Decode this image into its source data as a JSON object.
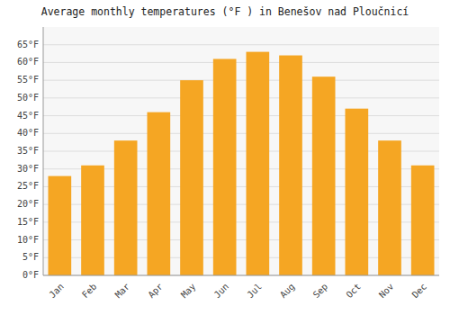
{
  "chart_data": {
    "type": "bar",
    "title": "Average monthly temperatures (°F ) in Benešov nad Ploučnicí",
    "categories": [
      "Jan",
      "Feb",
      "Mar",
      "Apr",
      "May",
      "Jun",
      "Jul",
      "Aug",
      "Sep",
      "Oct",
      "Nov",
      "Dec"
    ],
    "values": [
      28,
      31,
      38,
      46,
      55,
      61,
      63,
      62,
      56,
      47,
      38,
      31
    ],
    "color": "#F5A623",
    "ylim": [
      0,
      70
    ],
    "yticks": [
      {
        "value": 0,
        "label": "0°F"
      },
      {
        "value": 5,
        "label": "5°F"
      },
      {
        "value": 10,
        "label": "10°F"
      },
      {
        "value": 15,
        "label": "15°F"
      },
      {
        "value": 20,
        "label": "20°F"
      },
      {
        "value": 25,
        "label": "25°F"
      },
      {
        "value": 30,
        "label": "30°F"
      },
      {
        "value": 35,
        "label": "35°F"
      },
      {
        "value": 40,
        "label": "40°F"
      },
      {
        "value": 45,
        "label": "45°F"
      },
      {
        "value": 50,
        "label": "50°F"
      },
      {
        "value": 55,
        "label": "55°F"
      },
      {
        "value": 60,
        "label": "60°F"
      },
      {
        "value": 65,
        "label": "65°F"
      }
    ],
    "grid": true
  }
}
